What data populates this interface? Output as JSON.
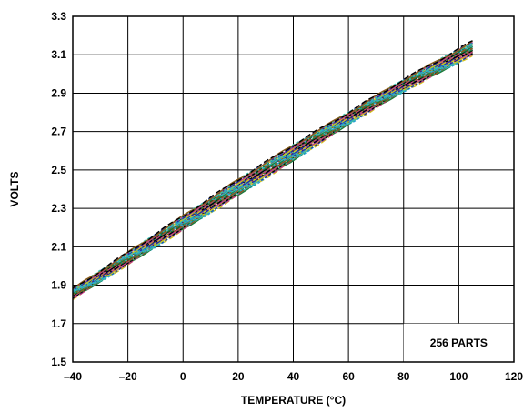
{
  "chart_data": {
    "type": "line",
    "xlabel": "TEMPERATURE (°C)",
    "ylabel": "VOLTS",
    "xlim": [
      -40,
      120
    ],
    "ylim": [
      1.5,
      3.3
    ],
    "xticks": [
      "–40",
      "–20",
      "0",
      "20",
      "40",
      "60",
      "80",
      "100",
      "120"
    ],
    "yticks": [
      "3.3",
      "3.1",
      "2.9",
      "2.7",
      "2.5",
      "2.3",
      "2.1",
      "1.9",
      "1.7",
      "1.5"
    ],
    "grid": true,
    "annotation": "256 PARTS",
    "series_count": 256,
    "envelope": {
      "x": [
        -40,
        -20,
        0,
        20,
        40,
        60,
        80,
        105
      ],
      "y_low": [
        1.83,
        2.01,
        2.19,
        2.37,
        2.55,
        2.74,
        2.91,
        3.1
      ],
      "y_high": [
        1.88,
        2.07,
        2.26,
        2.45,
        2.63,
        2.8,
        2.97,
        3.17
      ]
    },
    "series_colors": [
      "#d4c21a",
      "#22a0d8",
      "#1a7a3a",
      "#c03a8a",
      "#2a2a9a",
      "#3ac0b0",
      "#8a5a1a",
      "#000000"
    ]
  }
}
